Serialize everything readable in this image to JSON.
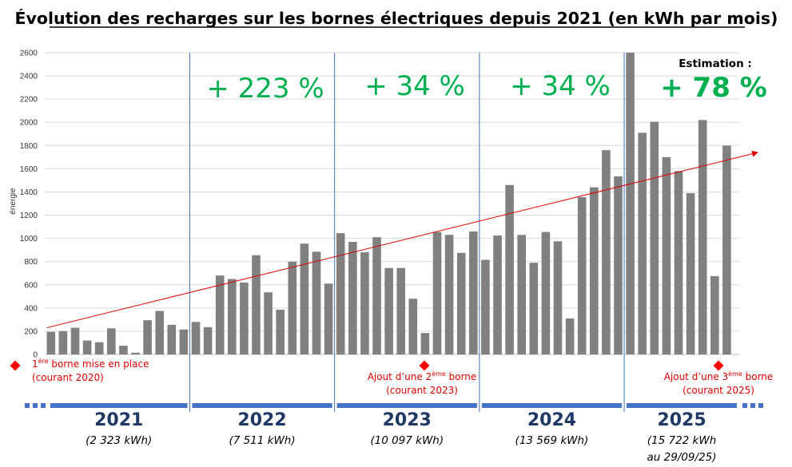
{
  "chart_data": {
    "type": "bar",
    "title": "Évolution des recharges sur les bornes électriques depuis 2021 (en kWh par mois)",
    "ylabel": "énergie",
    "ylim": [
      0,
      2600
    ],
    "yticks": [
      0,
      200,
      400,
      600,
      800,
      1000,
      1200,
      1400,
      1600,
      1800,
      2000,
      2200,
      2400,
      2600
    ],
    "grid": true,
    "bar_color": "#808080",
    "years": [
      {
        "year": "2021",
        "total": "(2 323 kWh)",
        "growth": "",
        "values": [
          195,
          200,
          230,
          120,
          105,
          225,
          75,
          15,
          295,
          375,
          255,
          215
        ]
      },
      {
        "year": "2022",
        "total": "(7 511 kWh)",
        "growth": "+ 223 %",
        "values": [
          280,
          235,
          680,
          650,
          620,
          855,
          535,
          385,
          800,
          955,
          885,
          610
        ]
      },
      {
        "year": "2023",
        "total": "(10 097 kWh)",
        "growth": "+ 34 %",
        "values": [
          1045,
          970,
          880,
          1010,
          745,
          745,
          480,
          185,
          1055,
          1030,
          875,
          1060
        ]
      },
      {
        "year": "2024",
        "total": "(13 569 kWh)",
        "growth": "+ 34 %",
        "values": [
          815,
          1025,
          1460,
          1030,
          790,
          1055,
          975,
          310,
          1355,
          1440,
          1760,
          1535
        ]
      },
      {
        "year": "2025",
        "total": "(15 722 kWh",
        "total_line2": "au 29/09/25)",
        "growth": "+ 78 %",
        "growth_prefix": "Estimation :",
        "values": [
          2600,
          1910,
          2005,
          1700,
          1580,
          1390,
          2020,
          675,
          1800
        ]
      }
    ],
    "trend": {
      "color": "#e00000",
      "start_value": 230,
      "end_value": 1740
    },
    "events": [
      {
        "sup": "ère",
        "line1_rest": " borne mise en place",
        "line1_pre": "1",
        "line2": "(courant 2020)"
      },
      {
        "line1_pre": "Ajout d’une 2",
        "sup": "ème",
        "line1_rest": " borne",
        "line2": "(courant 2023)"
      },
      {
        "line1_pre": "Ajout d’une 3",
        "sup": "ème",
        "line1_rest": " borne",
        "line2": "(courant 2025)"
      }
    ],
    "timeline_color": "#4472c4",
    "year_label_color": "#1f3864",
    "growth_color": "#00b050",
    "event_color": "#e00000"
  }
}
